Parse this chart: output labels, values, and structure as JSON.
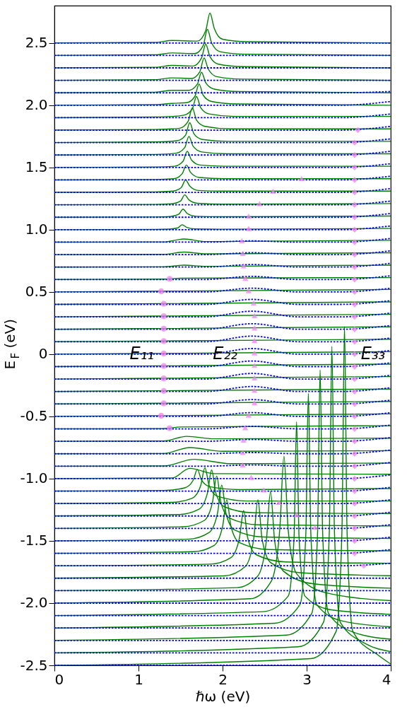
{
  "chart_data": {
    "type": "line",
    "xlabel": "ℏω (eV)",
    "ylabel": "E$_{F}$ (eV)",
    "xlim": [
      0,
      4
    ],
    "ylim": [
      -2.5,
      2.8
    ],
    "xticks": [
      0,
      1,
      2,
      3,
      4
    ],
    "yticks": [
      {
        "value": -2.5,
        "label": "-2.5"
      },
      {
        "value": -2,
        "label": "-2.0"
      },
      {
        "value": -1.5,
        "label": "-1.5"
      },
      {
        "value": -1,
        "label": "-1.0"
      },
      {
        "value": -0.5,
        "label": "-0.5"
      },
      0,
      {
        "value": 0.5,
        "label": "0.5"
      },
      {
        "value": 1,
        "label": "1.0"
      },
      {
        "value": 1.5,
        "label": "1.5"
      },
      {
        "value": 2,
        "label": "2.0"
      },
      {
        "value": 2.5,
        "label": "2.5"
      }
    ],
    "annotations": [
      {
        "text": "E₁₁",
        "x": 1.04,
        "y": 0
      },
      {
        "text": "E₂₂",
        "x": 2.03,
        "y": 0
      },
      {
        "text": "E₃₃",
        "x": 3.79,
        "y": 0
      }
    ],
    "x": [
      0,
      1.8,
      2.35,
      2.9,
      3.4,
      4
    ],
    "series": [
      {
        "color": "#008000",
        "x": [
          0,
          1.2,
          1.4,
          1.7,
          1.8,
          1.85,
          1.9,
          2.0,
          2.3,
          4
        ],
        "values": [
          2.5,
          2.505,
          2.52,
          2.515,
          2.6,
          2.74,
          2.62,
          2.53,
          2.51,
          2.5
        ]
      },
      {
        "color": "#008000",
        "x": [
          0,
          1.2,
          1.4,
          1.67,
          1.77,
          1.82,
          1.87,
          1.97,
          2.27,
          4
        ],
        "values": [
          2.4,
          2.405,
          2.42,
          2.415,
          2.48,
          2.61,
          2.5,
          2.43,
          2.41,
          2.4
        ]
      },
      {
        "color": "#008000",
        "x": [
          0,
          1.2,
          1.4,
          1.65,
          1.75,
          1.8,
          1.85,
          1.95,
          2.25,
          4
        ],
        "values": [
          2.3,
          2.305,
          2.32,
          2.315,
          2.38,
          2.49,
          2.39,
          2.33,
          2.31,
          2.3
        ]
      },
      {
        "color": "#008000",
        "x": [
          0,
          1.2,
          1.4,
          1.63,
          1.73,
          1.78,
          1.83,
          1.93,
          2.23,
          4
        ],
        "values": [
          2.2,
          2.205,
          2.22,
          2.215,
          2.27,
          2.38,
          2.29,
          2.23,
          2.21,
          2.2
        ]
      },
      {
        "color": "#008000",
        "x": [
          0,
          1.2,
          1.4,
          1.6,
          1.7,
          1.75,
          1.8,
          1.9,
          2.2,
          4
        ],
        "values": [
          2.1,
          2.105,
          2.12,
          2.12,
          2.17,
          2.265,
          2.18,
          2.13,
          2.11,
          2.1
        ]
      },
      {
        "color": "#008000",
        "x": [
          0,
          1.2,
          1.4,
          1.57,
          1.67,
          1.72,
          1.77,
          1.87,
          2.17,
          4
        ],
        "values": [
          2.0,
          2.005,
          2.015,
          2.02,
          2.07,
          2.17,
          2.08,
          2.03,
          2.01,
          2.0
        ]
      },
      {
        "color": "#008000",
        "x": [
          0,
          1.2,
          1.4,
          1.54,
          1.64,
          1.69,
          1.74,
          1.84,
          2.14,
          4
        ],
        "values": [
          1.9,
          1.905,
          1.91,
          1.92,
          1.97,
          2.07,
          1.98,
          1.93,
          1.91,
          1.91
        ]
      },
      {
        "color": "#008000",
        "x": [
          0,
          1.2,
          1.4,
          1.49,
          1.59,
          1.64,
          1.69,
          1.79,
          2.09,
          4
        ],
        "values": [
          1.8,
          1.805,
          1.81,
          1.815,
          1.87,
          1.98,
          1.88,
          1.83,
          1.81,
          1.81
        ]
      },
      {
        "color": "#008000",
        "x": [
          0,
          1.2,
          1.46,
          1.56,
          1.61,
          1.66,
          1.76,
          2.06,
          4
        ],
        "values": [
          1.7,
          1.705,
          1.715,
          1.76,
          1.86,
          1.77,
          1.725,
          1.71,
          1.71
        ]
      },
      {
        "color": "#008000",
        "x": [
          0,
          1.2,
          1.45,
          1.55,
          1.6,
          1.65,
          1.75,
          2.05,
          4
        ],
        "values": [
          1.6,
          1.605,
          1.615,
          1.66,
          1.75,
          1.67,
          1.625,
          1.61,
          1.61
        ]
      },
      {
        "color": "#008000",
        "x": [
          0,
          1.2,
          1.43,
          1.53,
          1.58,
          1.63,
          1.73,
          2.03,
          4
        ],
        "values": [
          1.5,
          1.503,
          1.51,
          1.55,
          1.63,
          1.56,
          1.52,
          1.51,
          1.51
        ]
      },
      {
        "color": "#008000",
        "x": [
          0,
          1.2,
          1.42,
          1.52,
          1.57,
          1.62,
          1.72,
          2.02,
          4
        ],
        "values": [
          1.4,
          1.403,
          1.41,
          1.45,
          1.52,
          1.46,
          1.42,
          1.41,
          1.41
        ]
      },
      {
        "color": "#008000",
        "x": [
          0,
          1.2,
          1.41,
          1.51,
          1.56,
          1.61,
          1.71,
          2.01,
          4
        ],
        "values": [
          1.3,
          1.303,
          1.31,
          1.34,
          1.4,
          1.35,
          1.315,
          1.31,
          1.31
        ]
      },
      {
        "color": "#008000",
        "x": [
          0,
          1.2,
          1.4,
          1.5,
          1.55,
          1.6,
          1.7,
          2.0,
          4
        ],
        "values": [
          1.2,
          1.203,
          1.208,
          1.23,
          1.28,
          1.24,
          1.212,
          1.205,
          1.21
        ]
      },
      {
        "color": "#008000",
        "x": [
          0,
          1.2,
          1.38,
          1.48,
          1.53,
          1.58,
          1.68,
          1.98,
          4
        ],
        "values": [
          1.1,
          1.102,
          1.106,
          1.125,
          1.165,
          1.13,
          1.108,
          1.104,
          1.11
        ]
      },
      {
        "color": "#008000",
        "x": [
          0,
          1.2,
          1.37,
          1.47,
          1.52,
          1.57,
          1.67,
          1.97,
          4
        ],
        "values": [
          1.0,
          1.002,
          1.005,
          1.015,
          1.04,
          1.02,
          1.006,
          1.004,
          1.01
        ]
      },
      {
        "color": "#008000",
        "x": [
          0,
          1.3,
          1.54,
          1.8,
          4
        ],
        "values": [
          0.9,
          0.902,
          0.925,
          0.905,
          0.915
        ]
      },
      {
        "color": "#008000",
        "x": [
          0,
          1.3,
          1.54,
          1.8,
          4
        ],
        "values": [
          0.8,
          0.802,
          0.82,
          0.806,
          0.815
        ]
      },
      {
        "color": "#008000",
        "x": [
          0,
          1.3,
          1.54,
          1.8,
          4
        ],
        "values": [
          0.7,
          0.702,
          0.715,
          0.706,
          0.715
        ]
      },
      {
        "color": "#008000",
        "x": [
          0,
          1.3,
          1.5,
          4
        ],
        "values": [
          0.6,
          0.603,
          0.61,
          0.615
        ]
      },
      {
        "color": "#008000",
        "x": [
          0,
          1.0,
          4
        ],
        "values": [
          0.5,
          0.505,
          0.52
        ]
      },
      {
        "color": "#008000",
        "x": [
          0,
          1.0,
          4
        ],
        "values": [
          0.4,
          0.405,
          0.42
        ]
      },
      {
        "color": "#008000",
        "x": [
          0,
          1.0,
          4
        ],
        "values": [
          0.3,
          0.305,
          0.32
        ]
      },
      {
        "color": "#008000",
        "x": [
          0,
          1.0,
          4
        ],
        "values": [
          0.2,
          0.205,
          0.22
        ]
      },
      {
        "color": "#008000",
        "x": [
          0,
          1.0,
          4
        ],
        "values": [
          0.1,
          0.105,
          0.12
        ]
      },
      {
        "color": "#008000",
        "x": [
          0,
          1.0,
          4
        ],
        "values": [
          0,
          0.005,
          0.02
        ]
      },
      {
        "color": "#008000",
        "x": [
          0,
          1.0,
          4
        ],
        "values": [
          -0.1,
          -0.095,
          -0.08
        ]
      },
      {
        "color": "#008000",
        "x": [
          0,
          1.0,
          4
        ],
        "values": [
          -0.2,
          -0.195,
          -0.18
        ]
      },
      {
        "color": "#008000",
        "x": [
          0,
          1.0,
          4
        ],
        "values": [
          -0.3,
          -0.295,
          -0.28
        ]
      },
      {
        "color": "#008000",
        "x": [
          0,
          1.0,
          4
        ],
        "values": [
          -0.4,
          -0.395,
          -0.38
        ]
      },
      {
        "color": "#008000",
        "x": [
          0,
          1.0,
          4
        ],
        "values": [
          -0.5,
          -0.495,
          -0.48
        ]
      },
      {
        "color": "#008000",
        "x": [
          0,
          1.3,
          1.5,
          4
        ],
        "values": [
          -0.6,
          -0.598,
          -0.585,
          -0.575
        ]
      },
      {
        "color": "#008000",
        "x": [
          0,
          1.3,
          1.57,
          1.9,
          4
        ],
        "values": [
          -0.7,
          -0.698,
          -0.66,
          -0.68,
          -0.675
        ]
      },
      {
        "color": "#008000",
        "x": [
          0,
          1.3,
          1.61,
          2.0,
          4
        ],
        "values": [
          -0.8,
          -0.798,
          -0.75,
          -0.78,
          -0.775
        ]
      },
      {
        "color": "#008000",
        "x": [
          0,
          1.3,
          1.66,
          2.1,
          4
        ],
        "values": [
          -0.9,
          -0.898,
          -0.845,
          -0.88,
          -0.875
        ]
      },
      {
        "color": "#008000",
        "x": [
          0,
          1.4,
          1.61,
          1.9,
          4
        ],
        "values": [
          -1.0,
          -0.995,
          -0.917,
          -0.96,
          -0.965
        ]
      },
      {
        "color": "#008000",
        "x": [
          0,
          1.3,
          1.55,
          1.65,
          1.7,
          1.75,
          1.85,
          2.2,
          4
        ],
        "values": [
          -1.1,
          -1.095,
          -1.074,
          -1.013,
          -0.926,
          -1.013,
          -1.065,
          -1.088,
          -1.08
        ]
      },
      {
        "color": "#008000",
        "x": [
          0,
          1.39,
          1.64,
          1.74,
          1.79,
          1.84,
          1.94,
          2.29,
          4
        ],
        "values": [
          -1.2,
          -1.191,
          -1.157,
          -1.056,
          -0.912,
          -1.056,
          -1.142,
          -1.18,
          -1.18
        ]
      },
      {
        "color": "#008000",
        "x": [
          0,
          1.47,
          1.72,
          1.82,
          1.87,
          1.92,
          2.02,
          2.37,
          4
        ],
        "values": [
          -1.3,
          -1.289,
          -1.245,
          -1.116,
          -0.931,
          -1.116,
          -1.226,
          -1.274,
          -1.28
        ]
      },
      {
        "color": "#008000",
        "x": [
          0,
          1.53,
          1.78,
          1.88,
          1.93,
          1.98,
          2.08,
          2.43,
          4
        ],
        "values": [
          -1.4,
          -1.387,
          -1.337,
          -1.19,
          -0.98,
          -1.19,
          -1.316,
          -1.371,
          -1.38
        ]
      },
      {
        "color": "#008000",
        "x": [
          0,
          1.59,
          1.84,
          1.94,
          1.99,
          2.04,
          2.14,
          2.49,
          4
        ],
        "values": [
          -1.5,
          -1.487,
          -1.433,
          -1.277,
          -1.053,
          -1.277,
          -1.411,
          -1.469,
          -1.48
        ]
      },
      {
        "color": "#008000",
        "x": [
          0,
          1.65,
          1.9,
          2.0,
          2.05,
          2.1,
          2.2,
          2.55,
          4
        ],
        "values": [
          -1.6,
          -1.587,
          -1.536,
          -1.385,
          -1.17,
          -1.385,
          -1.514,
          -1.57,
          -1.58
        ]
      },
      {
        "color": "#008000",
        "x": [
          0,
          1.85,
          2.1,
          2.2,
          2.25,
          2.3,
          2.4,
          2.75,
          4
        ],
        "values": [
          -1.7,
          -1.687,
          -1.634,
          -1.479,
          -1.257,
          -1.479,
          -1.611,
          -1.669,
          -1.68
        ]
      },
      {
        "color": "#008000",
        "x": [
          0,
          2.02,
          2.27,
          2.37,
          2.42,
          2.47,
          2.57,
          2.92,
          4
        ],
        "values": [
          -1.8,
          -1.781,
          -1.706,
          -1.486,
          -1.171,
          -1.486,
          -1.674,
          -1.756,
          -1.78
        ]
      },
      {
        "color": "#008000",
        "x": [
          0,
          2.17,
          2.42,
          2.52,
          2.57,
          2.62,
          2.72,
          3.07,
          4
        ],
        "values": [
          -1.9,
          -1.876,
          -1.781,
          -1.503,
          -1.105,
          -1.503,
          -1.741,
          -1.844,
          -1.88
        ]
      },
      {
        "color": "#008000",
        "x": [
          0,
          2.33,
          2.58,
          2.68,
          2.73,
          2.78,
          2.88,
          3.23,
          4
        ],
        "values": [
          -2.0,
          -1.965,
          -1.823,
          -1.41,
          -0.82,
          -1.41,
          -1.764,
          -1.917,
          -1.98
        ]
      },
      {
        "color": "#008000",
        "x": [
          0,
          2.48,
          2.78,
          2.85,
          2.88,
          2.91,
          2.98,
          3.28,
          4
        ],
        "values": [
          -2.1,
          -2.069,
          -1.944,
          -1.478,
          -0.544,
          -1.478,
          -1.944,
          -2.053,
          -2.09
        ]
      },
      {
        "color": "#008000",
        "x": [
          0,
          2.62,
          2.92,
          2.99,
          3.02,
          3.05,
          3.12,
          3.42,
          4
        ],
        "values": [
          -2.2,
          -2.162,
          -2.012,
          -1.446,
          -0.316,
          -1.446,
          -2.012,
          -2.143,
          -2.19
        ]
      },
      {
        "color": "#008000",
        "x": [
          0,
          2.76,
          3.06,
          3.13,
          3.16,
          3.19,
          3.26,
          3.56,
          4
        ],
        "values": [
          -2.3,
          -2.257,
          -2.083,
          -1.431,
          -0.127,
          -1.431,
          -2.083,
          -2.235,
          -2.29
        ]
      },
      {
        "color": "#008000",
        "x": [
          0,
          2.9,
          3.2,
          3.27,
          3.3,
          3.33,
          3.4,
          3.7,
          4
        ],
        "values": [
          -2.4,
          -2.351,
          -2.154,
          -1.415,
          0.062,
          -1.415,
          -2.154,
          -2.326,
          -2.39
        ]
      },
      {
        "color": "#008000",
        "x": [
          0,
          3.05,
          3.35,
          3.42,
          3.45,
          3.48,
          3.55,
          3.85,
          4
        ],
        "values": [
          -2.5,
          -2.446,
          -2.228,
          -1.411,
          0.223,
          -1.411,
          -2.228,
          -2.418,
          -2.49
        ]
      },
      {
        "color": "#0000ff",
        "line_style": "dotted",
        "values": [
          2.5,
          2.5,
          2.5,
          2.5,
          2.5,
          2.5
        ]
      },
      {
        "color": "#0000ff",
        "line_style": "dotted",
        "values": [
          2.4,
          2.4,
          2.4,
          2.4,
          2.4,
          2.4
        ]
      },
      {
        "color": "#0000ff",
        "line_style": "dotted",
        "values": [
          2.3,
          2.3,
          2.3,
          2.3,
          2.3,
          2.3
        ]
      },
      {
        "color": "#0000ff",
        "line_style": "dotted",
        "values": [
          2.2,
          2.2,
          2.2,
          2.2,
          2.2,
          2.2
        ]
      },
      {
        "color": "#0000ff",
        "line_style": "dotted",
        "values": [
          2.1,
          2.1,
          2.1,
          2.1,
          2.1,
          2.11
        ]
      },
      {
        "color": "#0000ff",
        "line_style": "dotted",
        "values": [
          2.0,
          2.0,
          2.0,
          2.0,
          2.0,
          2.03
        ]
      },
      {
        "color": "#0000ff",
        "line_style": "dotted",
        "values": [
          1.9,
          1.9,
          1.9,
          1.9,
          1.9,
          1.93
        ]
      },
      {
        "color": "#0000ff",
        "line_style": "dotted",
        "values": [
          1.8,
          1.8,
          1.8,
          1.8,
          1.8,
          1.83
        ]
      },
      {
        "color": "#0000ff",
        "line_style": "dotted",
        "values": [
          1.7,
          1.7,
          1.7,
          1.7,
          1.7,
          1.73
        ]
      },
      {
        "color": "#0000ff",
        "line_style": "dotted",
        "values": [
          1.6,
          1.6,
          1.6,
          1.6,
          1.6,
          1.63
        ]
      },
      {
        "color": "#0000ff",
        "line_style": "dotted",
        "values": [
          1.5,
          1.5,
          1.5,
          1.5,
          1.5,
          1.53
        ]
      },
      {
        "color": "#0000ff",
        "line_style": "dotted",
        "values": [
          1.4,
          1.4,
          1.4,
          1.4,
          1.4,
          1.43
        ]
      },
      {
        "color": "#0000ff",
        "line_style": "dotted",
        "values": [
          1.3,
          1.3,
          1.3,
          1.3,
          1.3,
          1.33
        ]
      },
      {
        "color": "#0000ff",
        "line_style": "dotted",
        "values": [
          1.2,
          1.2,
          1.2,
          1.2,
          1.2,
          1.23
        ]
      },
      {
        "color": "#0000ff",
        "line_style": "dotted",
        "values": [
          1.1,
          1.1,
          1.1,
          1.1,
          1.1,
          1.13
        ]
      },
      {
        "color": "#0000ff",
        "line_style": "dotted",
        "values": [
          1.0,
          1.0,
          1.0,
          1.0,
          1.0,
          1.03
        ]
      },
      {
        "color": "#0000ff",
        "line_style": "dotted",
        "values": [
          0.9,
          0.9,
          0.91,
          0.9,
          0.9,
          0.93
        ]
      },
      {
        "color": "#0000ff",
        "line_style": "dotted",
        "values": [
          0.8,
          0.8,
          0.815,
          0.8,
          0.8,
          0.83
        ]
      },
      {
        "color": "#0000ff",
        "line_style": "dotted",
        "values": [
          0.7,
          0.7,
          0.72,
          0.7,
          0.7,
          0.73
        ]
      },
      {
        "color": "#0000ff",
        "line_style": "dotted",
        "values": [
          0.6,
          0.6,
          0.625,
          0.6,
          0.6,
          0.63
        ]
      },
      {
        "color": "#0000ff",
        "line_style": "dotted",
        "values": [
          0.5,
          0.5,
          0.53,
          0.5,
          0.5,
          0.53
        ]
      },
      {
        "color": "#0000ff",
        "line_style": "dotted",
        "values": [
          0.4,
          0.4,
          0.44,
          0.4,
          0.4,
          0.43
        ]
      },
      {
        "color": "#0000ff",
        "line_style": "dotted",
        "values": [
          0.3,
          0.3,
          0.345,
          0.3,
          0.3,
          0.33
        ]
      },
      {
        "color": "#0000ff",
        "line_style": "dotted",
        "values": [
          0.2,
          0.2,
          0.245,
          0.2,
          0.2,
          0.23
        ]
      },
      {
        "color": "#0000ff",
        "line_style": "dotted",
        "values": [
          0.1,
          0.1,
          0.145,
          0.1,
          0.1,
          0.13
        ]
      },
      {
        "color": "#0000ff",
        "line_style": "dotted",
        "values": [
          0,
          0,
          0.045,
          0,
          0,
          0.03
        ]
      },
      {
        "color": "#0000ff",
        "line_style": "dotted",
        "values": [
          -0.1,
          -0.1,
          -0.055,
          -0.1,
          -0.1,
          -0.07
        ]
      },
      {
        "color": "#0000ff",
        "line_style": "dotted",
        "values": [
          -0.2,
          -0.2,
          -0.155,
          -0.2,
          -0.2,
          -0.17
        ]
      },
      {
        "color": "#0000ff",
        "line_style": "dotted",
        "values": [
          -0.3,
          -0.3,
          -0.26,
          -0.3,
          -0.3,
          -0.27
        ]
      },
      {
        "color": "#0000ff",
        "line_style": "dotted",
        "values": [
          -0.4,
          -0.4,
          -0.365,
          -0.4,
          -0.4,
          -0.37
        ]
      },
      {
        "color": "#0000ff",
        "line_style": "dotted",
        "values": [
          -0.5,
          -0.5,
          -0.47,
          -0.5,
          -0.5,
          -0.47
        ]
      },
      {
        "color": "#0000ff",
        "line_style": "dotted",
        "values": [
          -0.6,
          -0.6,
          -0.58,
          -0.6,
          -0.6,
          -0.57
        ]
      },
      {
        "color": "#0000ff",
        "line_style": "dotted",
        "values": [
          -0.7,
          -0.7,
          -0.685,
          -0.7,
          -0.7,
          -0.67
        ]
      },
      {
        "color": "#0000ff",
        "line_style": "dotted",
        "values": [
          -0.8,
          -0.8,
          -0.79,
          -0.8,
          -0.8,
          -0.77
        ]
      },
      {
        "color": "#0000ff",
        "line_style": "dotted",
        "values": [
          -0.9,
          -0.9,
          -0.89,
          -0.9,
          -0.9,
          -0.87
        ]
      },
      {
        "color": "#0000ff",
        "line_style": "dotted",
        "values": [
          -1.0,
          -1.0,
          -1.0,
          -1.0,
          -1.0,
          -0.97
        ]
      },
      {
        "color": "#0000ff",
        "line_style": "dotted",
        "values": [
          -1.1,
          -1.1,
          -1.1,
          -1.1,
          -1.1,
          -1.07
        ]
      },
      {
        "color": "#0000ff",
        "line_style": "dotted",
        "values": [
          -1.2,
          -1.2,
          -1.2,
          -1.2,
          -1.2,
          -1.17
        ]
      },
      {
        "color": "#0000ff",
        "line_style": "dotted",
        "values": [
          -1.3,
          -1.3,
          -1.3,
          -1.3,
          -1.3,
          -1.27
        ]
      },
      {
        "color": "#0000ff",
        "line_style": "dotted",
        "values": [
          -1.4,
          -1.4,
          -1.4,
          -1.4,
          -1.4,
          -1.37
        ]
      },
      {
        "color": "#0000ff",
        "line_style": "dotted",
        "values": [
          -1.5,
          -1.5,
          -1.5,
          -1.5,
          -1.5,
          -1.47
        ]
      },
      {
        "color": "#0000ff",
        "line_style": "dotted",
        "values": [
          -1.6,
          -1.6,
          -1.6,
          -1.6,
          -1.6,
          -1.57
        ]
      },
      {
        "color": "#0000ff",
        "line_style": "dotted",
        "values": [
          -1.7,
          -1.7,
          -1.7,
          -1.7,
          -1.7,
          -1.68
        ]
      },
      {
        "color": "#0000ff",
        "line_style": "dotted",
        "values": [
          -1.8,
          -1.8,
          -1.8,
          -1.8,
          -1.8,
          -1.8
        ]
      },
      {
        "color": "#0000ff",
        "line_style": "dotted",
        "values": [
          -1.9,
          -1.9,
          -1.9,
          -1.9,
          -1.9,
          -1.9
        ]
      },
      {
        "color": "#0000ff",
        "line_style": "dotted",
        "values": [
          -2.0,
          -2.0,
          -2.0,
          -2.0,
          -2.0,
          -2.0
        ]
      },
      {
        "color": "#0000ff",
        "line_style": "dotted",
        "values": [
          -2.1,
          -2.1,
          -2.1,
          -2.1,
          -2.1,
          -2.1
        ]
      },
      {
        "color": "#0000ff",
        "line_style": "dotted",
        "values": [
          -2.2,
          -2.2,
          -2.2,
          -2.2,
          -2.2,
          -2.2
        ]
      },
      {
        "color": "#0000ff",
        "line_style": "dotted",
        "values": [
          -2.3,
          -2.3,
          -2.3,
          -2.3,
          -2.3,
          -2.3
        ]
      },
      {
        "color": "#0000ff",
        "line_style": "dotted",
        "values": [
          -2.4,
          -2.4,
          -2.4,
          -2.4,
          -2.4,
          -2.4
        ]
      },
      {
        "color": "#0000ff",
        "line_style": "dotted",
        "values": [
          -2.5,
          -2.5,
          -2.5,
          -2.5,
          -2.5,
          -2.5
        ]
      },
      {
        "type": "scatter",
        "marker": "circle",
        "color": "#ee82ee",
        "x": [
          1.37,
          1.27,
          1.3,
          1.3,
          1.3,
          1.3,
          1.3,
          1.3,
          1.3,
          1.3,
          1.3,
          1.27,
          1.37
        ],
        "values": [
          0.605,
          0.505,
          0.405,
          0.305,
          0.205,
          0.105,
          0.005,
          -0.095,
          -0.195,
          -0.295,
          -0.395,
          -0.495,
          -0.595
        ]
      },
      {
        "type": "scatter",
        "marker": "triangle",
        "color": "#ee82ee",
        "x": [
          2.94,
          2.6,
          2.44,
          2.31,
          2.31,
          2.23,
          2.24,
          2.25,
          2.27,
          2.31,
          2.37,
          2.38,
          2.38,
          2.38,
          2.38,
          2.38,
          2.38,
          2.38,
          2.38,
          2.31,
          2.27,
          2.25,
          2.24,
          2.24,
          2.34,
          2.49,
          2.67,
          2.88,
          3.1
        ],
        "values": [
          1.41,
          1.31,
          1.21,
          1.11,
          1.01,
          0.91,
          0.81,
          0.71,
          0.61,
          0.51,
          0.41,
          0.31,
          0.21,
          0.11,
          0.01,
          -0.09,
          -0.19,
          -0.29,
          -0.39,
          -0.49,
          -0.59,
          -0.69,
          -0.79,
          -0.89,
          -0.99,
          -1.09,
          -1.19,
          -1.29,
          -1.39
        ]
      },
      {
        "type": "scatter",
        "marker": "diamond",
        "color": "#ee82ee",
        "x": [
          3.61,
          3.57,
          3.57,
          3.57,
          3.57,
          3.57,
          3.57,
          3.57,
          3.57,
          3.57,
          3.57,
          3.57,
          3.57,
          3.57,
          3.57,
          3.57,
          3.57,
          3.57,
          3.57,
          3.57,
          3.57,
          3.57,
          3.57,
          3.57,
          3.57,
          3.57,
          3.57,
          3.57,
          3.57,
          3.57,
          3.57,
          3.57,
          3.57,
          3.57,
          3.57,
          3.68
        ],
        "values": [
          1.8,
          1.7,
          1.6,
          1.5,
          1.4,
          1.3,
          1.2,
          1.1,
          1.0,
          0.9,
          0.8,
          0.7,
          0.6,
          0.5,
          0.4,
          0.3,
          0.2,
          0.1,
          0,
          -0.1,
          -0.2,
          -0.3,
          -0.4,
          -0.5,
          -0.6,
          -0.7,
          -0.8,
          -0.9,
          -1.0,
          -1.1,
          -1.2,
          -1.3,
          -1.4,
          -1.5,
          -1.6,
          -1.7
        ]
      }
    ]
  }
}
